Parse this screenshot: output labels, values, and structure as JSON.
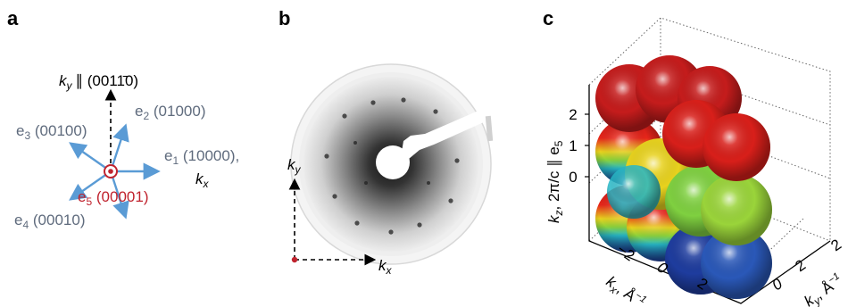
{
  "panels": {
    "a": {
      "label": "a",
      "ky_label": "k",
      "ky_sub": "y",
      "ky_rest": "∥ (0011̄0)",
      "e1": {
        "main": "e",
        "sub": "1",
        "rest": " (10000),"
      },
      "kx": {
        "main": "k",
        "sub": "x"
      },
      "e2": {
        "main": "e",
        "sub": "2",
        "rest": " (01000)"
      },
      "e3": {
        "main": "e",
        "sub": "3",
        "rest": " (00100)"
      },
      "e4": {
        "main": "e",
        "sub": "4",
        "rest": " (00010)"
      },
      "e5": {
        "main": "e",
        "sub": "5",
        "rest": " (00001)"
      }
    },
    "b": {
      "label": "b",
      "ky": {
        "main": "k",
        "sub": "y"
      },
      "kx": {
        "main": "k",
        "sub": "x"
      }
    },
    "c": {
      "label": "c",
      "zlabel": "k",
      "zlabel_sub": "z",
      "zlabel_rest": ", 2π/c ∥ e",
      "zlabel_sub2": "5",
      "xlabel": "k",
      "xlabel_sub": "x",
      "xlabel_rest": ", Å",
      "xlabel_sup": "−1",
      "ylabel": "k",
      "ylabel_sub": "y",
      "ylabel_rest": ", Å",
      "ylabel_sup": "−1",
      "z_ticks": [
        "2",
        "1",
        "0"
      ],
      "x_ticks": [
        "−2",
        "0",
        "2"
      ],
      "y_ticks": [
        "0",
        "2",
        "2"
      ]
    }
  },
  "colors": {
    "vector_blue": "#5a9bd5",
    "label_gray": "#5f6b7d",
    "e5_red": "#c0232e",
    "black": "#000000"
  }
}
